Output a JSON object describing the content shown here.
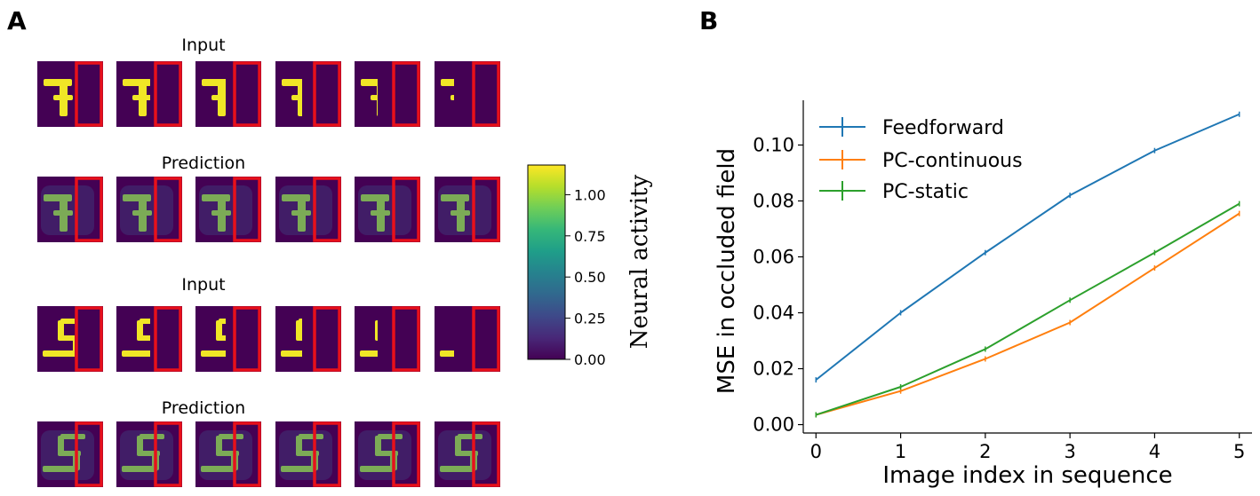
{
  "panel_a": {
    "label": "A",
    "rows": [
      {
        "title": "Input",
        "digit": "7",
        "kind": "input"
      },
      {
        "title": "Prediction",
        "digit": "7",
        "kind": "prediction"
      },
      {
        "title": "Input",
        "digit": "5",
        "kind": "input"
      },
      {
        "title": "Prediction",
        "digit": "5",
        "kind": "prediction"
      }
    ],
    "frames_per_row": 6,
    "occluder_color": "#e8101a",
    "background_color": "#440154",
    "colorbar": {
      "label": "Neural activity",
      "ticks": [
        "1.00",
        "0.75",
        "0.50",
        "0.25",
        "0.00"
      ],
      "tick_values": [
        1.0,
        0.75,
        0.5,
        0.25,
        0.0
      ],
      "range": [
        0,
        1.18
      ],
      "colormap": "viridis"
    }
  },
  "panel_b": {
    "label": "B"
  },
  "chart_data": {
    "type": "line",
    "title": "",
    "xlabel": "Image index in sequence",
    "ylabel": "MSE in occluded field",
    "x": [
      0,
      1,
      2,
      3,
      4,
      5
    ],
    "xlim": [
      -0.15,
      5.15
    ],
    "ylim": [
      -0.003,
      0.116
    ],
    "xticks": [
      "0",
      "1",
      "2",
      "3",
      "4",
      "5"
    ],
    "yticks": [
      "0.00",
      "0.02",
      "0.04",
      "0.06",
      "0.08",
      "0.10"
    ],
    "ytick_values": [
      0.0,
      0.02,
      0.04,
      0.06,
      0.08,
      0.1
    ],
    "legend_position": "top-left",
    "series": [
      {
        "name": "Feedforward",
        "color": "#1f77b4",
        "values": [
          0.016,
          0.04,
          0.0615,
          0.082,
          0.098,
          0.111
        ]
      },
      {
        "name": "PC-continuous",
        "color": "#ff7f0e",
        "values": [
          0.0035,
          0.012,
          0.0235,
          0.0365,
          0.056,
          0.0755
        ]
      },
      {
        "name": "PC-static",
        "color": "#2ca02c",
        "values": [
          0.0035,
          0.0135,
          0.027,
          0.0445,
          0.0615,
          0.079
        ]
      }
    ]
  }
}
